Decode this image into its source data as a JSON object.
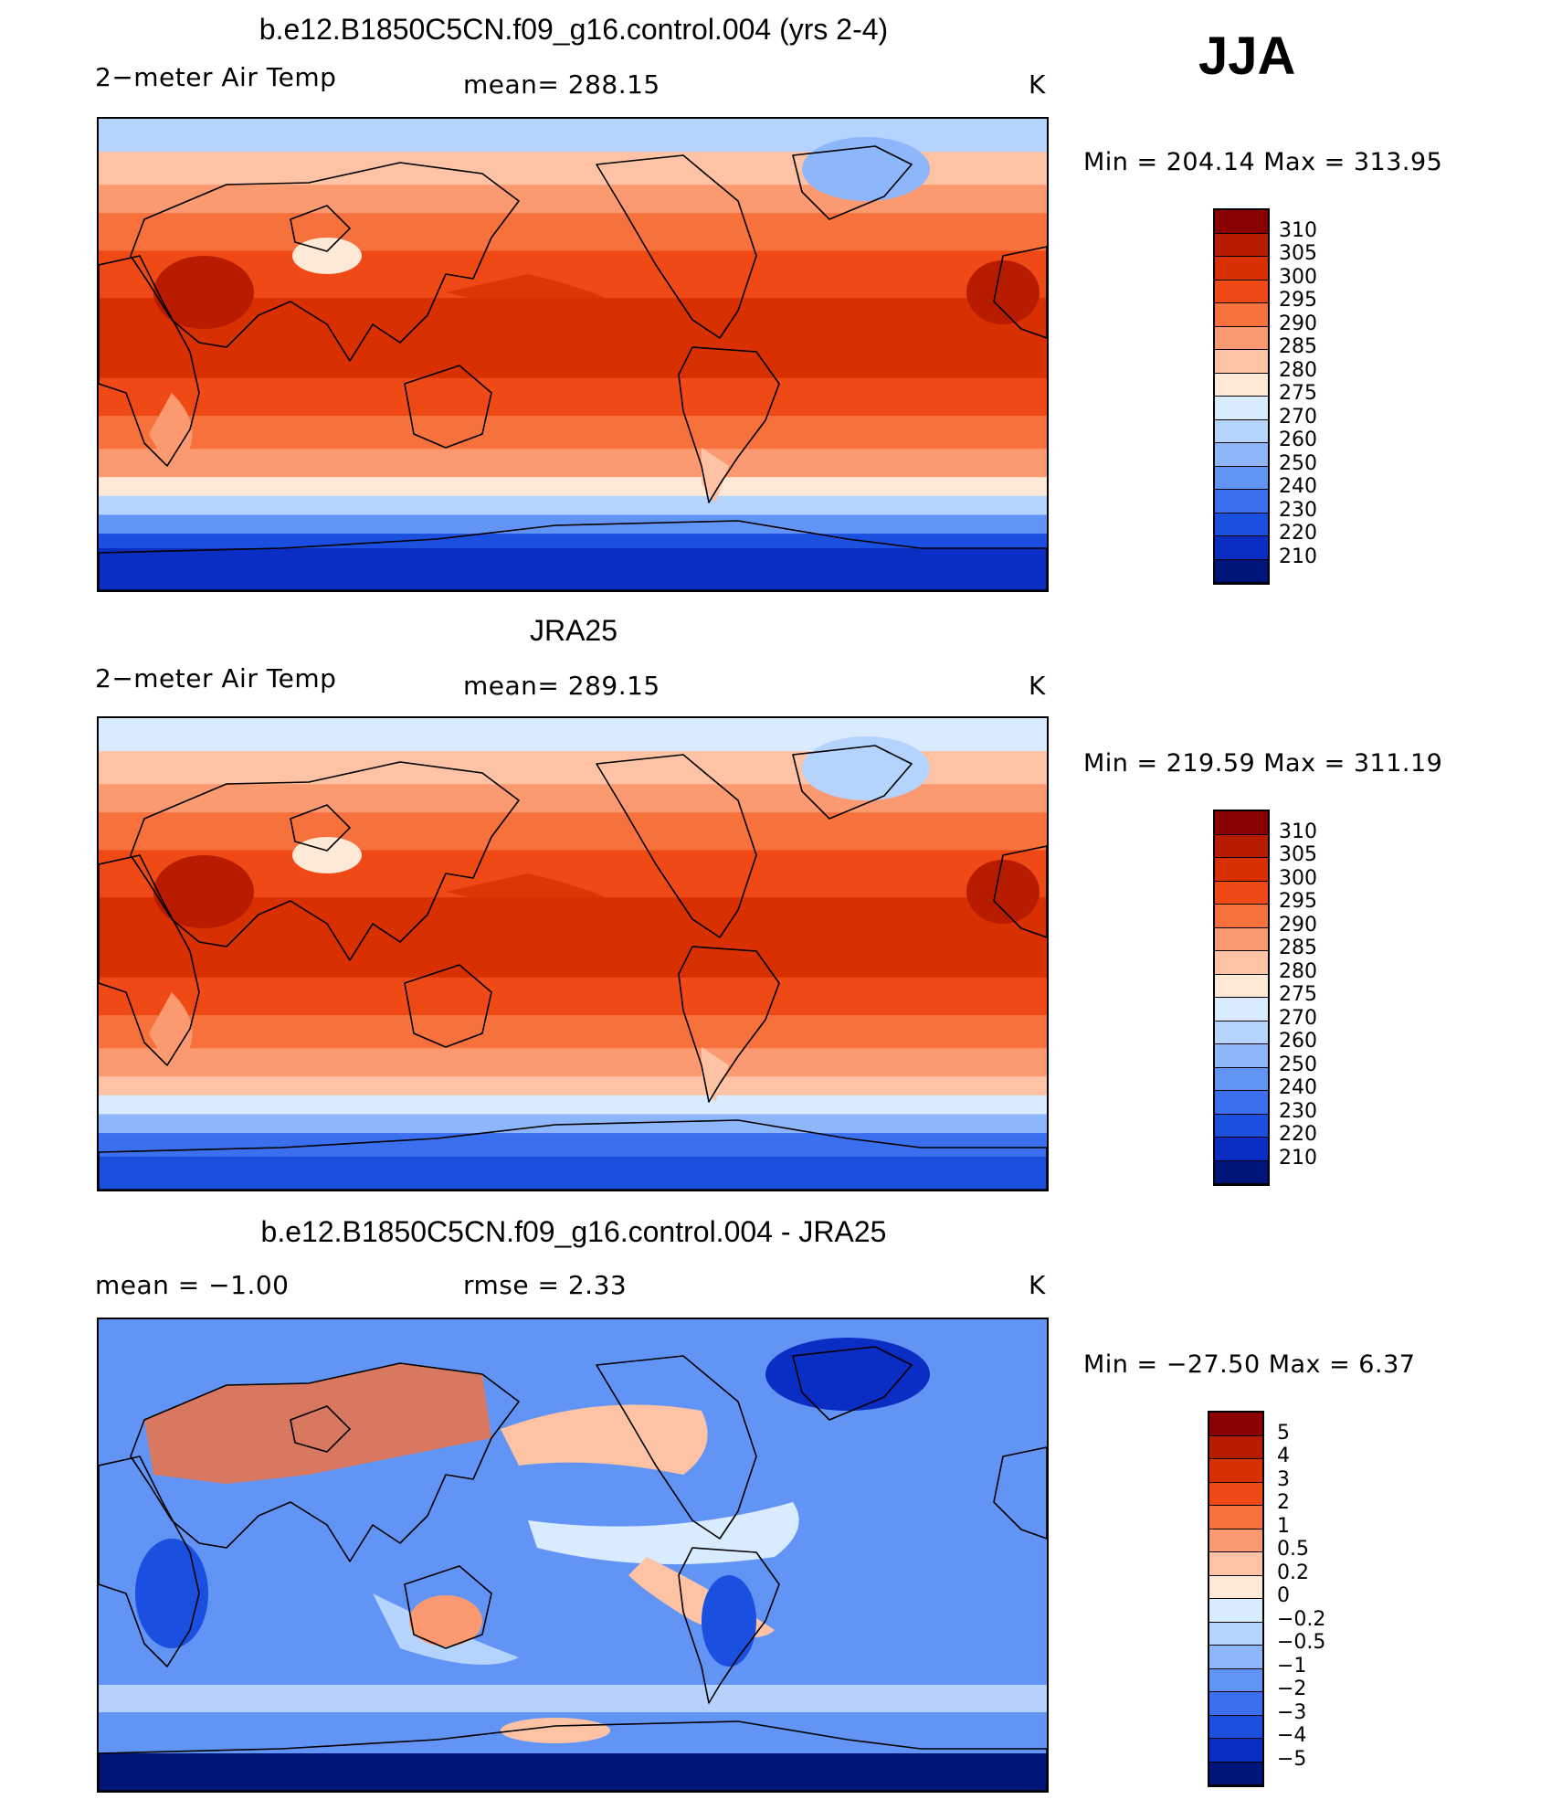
{
  "season_label": "JJA",
  "panels": [
    {
      "title": "b.e12.B1850C5CN.f09_g16.control.004 (yrs 2-4)",
      "variable": "2−meter Air Temp",
      "stat": "mean=  288.15",
      "units": "K",
      "minmax": "Min  =  204.14  Max  =  313.95",
      "colorbar": {
        "ticks": [
          "310",
          "305",
          "300",
          "295",
          "290",
          "285",
          "280",
          "275",
          "270",
          "260",
          "250",
          "240",
          "230",
          "220",
          "210"
        ],
        "colors": [
          "#8b0000",
          "#b81c00",
          "#d83000",
          "#ef4a16",
          "#f7713c",
          "#fb9a70",
          "#fdc3a4",
          "#fee8d6",
          "#d8ebff",
          "#b4d3fd",
          "#8db6fb",
          "#6294f6",
          "#3a6ff0",
          "#1b4fe0",
          "#0a2ec4",
          "#00157a"
        ]
      },
      "map_scheme": "temp_model"
    },
    {
      "title": "JRA25",
      "variable": "2−meter Air Temp",
      "stat": "mean=  289.15",
      "units": "K",
      "minmax": "Min  =  219.59  Max  =  311.19",
      "colorbar": {
        "ticks": [
          "310",
          "305",
          "300",
          "295",
          "290",
          "285",
          "280",
          "275",
          "270",
          "260",
          "250",
          "240",
          "230",
          "220",
          "210"
        ],
        "colors": [
          "#8b0000",
          "#b81c00",
          "#d83000",
          "#ef4a16",
          "#f7713c",
          "#fb9a70",
          "#fdc3a4",
          "#fee8d6",
          "#d8ebff",
          "#b4d3fd",
          "#8db6fb",
          "#6294f6",
          "#3a6ff0",
          "#1b4fe0",
          "#0a2ec4",
          "#00157a"
        ]
      },
      "map_scheme": "temp_obs"
    },
    {
      "title": "b.e12.B1850C5CN.f09_g16.control.004 - JRA25",
      "variable": "mean =    −1.00",
      "stat": "rmse =     2.33",
      "units": "K",
      "minmax": "Min  =  −27.50  Max  =     6.37",
      "colorbar": {
        "ticks": [
          "5",
          "4",
          "3",
          "2",
          "1",
          "0.5",
          "0.2",
          "0",
          "−0.2",
          "−0.5",
          "−1",
          "−2",
          "−3",
          "−4",
          "−5"
        ],
        "colors": [
          "#8b0000",
          "#b81c00",
          "#d83000",
          "#ef4a16",
          "#f7713c",
          "#fb9a70",
          "#fdc3a4",
          "#fee8d6",
          "#d8ebff",
          "#b4d3fd",
          "#8db6fb",
          "#6294f6",
          "#3a6ff0",
          "#1b4fe0",
          "#0a2ec4",
          "#00157a"
        ]
      },
      "map_scheme": "diff"
    }
  ]
}
